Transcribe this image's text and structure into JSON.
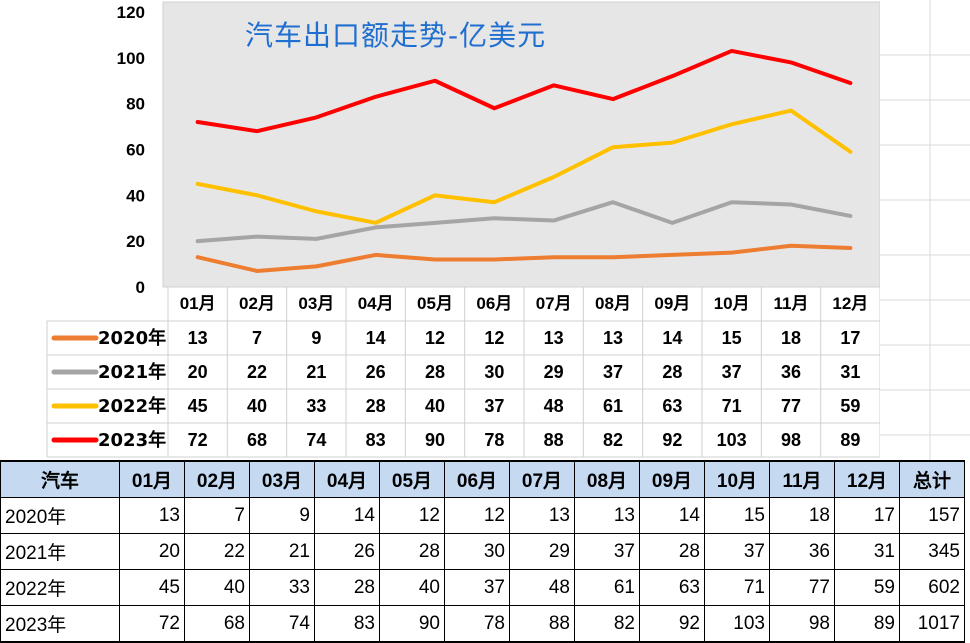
{
  "chart_data": {
    "type": "line",
    "title": "汽车出口额走势-亿美元",
    "categories": [
      "01月",
      "02月",
      "03月",
      "04月",
      "05月",
      "06月",
      "07月",
      "08月",
      "09月",
      "10月",
      "11月",
      "12月"
    ],
    "ylim": [
      0,
      120
    ],
    "yticks": [
      0,
      20,
      40,
      60,
      80,
      100,
      120
    ],
    "grid": false,
    "legend": "data-table",
    "series": [
      {
        "name": "2020年",
        "color": "#ed7d31",
        "values": [
          13,
          7,
          9,
          14,
          12,
          12,
          13,
          13,
          14,
          15,
          18,
          17
        ]
      },
      {
        "name": "2021年",
        "color": "#a5a5a5",
        "values": [
          20,
          22,
          21,
          26,
          28,
          30,
          29,
          37,
          28,
          37,
          36,
          31
        ]
      },
      {
        "name": "2022年",
        "color": "#ffc000",
        "values": [
          45,
          40,
          33,
          28,
          40,
          37,
          48,
          61,
          63,
          71,
          77,
          59
        ]
      },
      {
        "name": "2023年",
        "color": "#ff0000",
        "values": [
          72,
          68,
          74,
          83,
          90,
          78,
          88,
          82,
          92,
          103,
          98,
          89
        ]
      }
    ]
  },
  "table": {
    "header": [
      "汽车",
      "01月",
      "02月",
      "03月",
      "04月",
      "05月",
      "06月",
      "07月",
      "08月",
      "09月",
      "10月",
      "11月",
      "12月",
      "总计"
    ],
    "rows": [
      [
        "2020年",
        13,
        7,
        9,
        14,
        12,
        12,
        13,
        13,
        14,
        15,
        18,
        17,
        157
      ],
      [
        "2021年",
        20,
        22,
        21,
        26,
        28,
        30,
        29,
        37,
        28,
        37,
        36,
        31,
        345
      ],
      [
        "2022年",
        45,
        40,
        33,
        28,
        40,
        37,
        48,
        61,
        63,
        71,
        77,
        59,
        602
      ],
      [
        "2023年",
        72,
        68,
        74,
        83,
        90,
        78,
        88,
        82,
        92,
        103,
        98,
        89,
        1017
      ]
    ]
  }
}
